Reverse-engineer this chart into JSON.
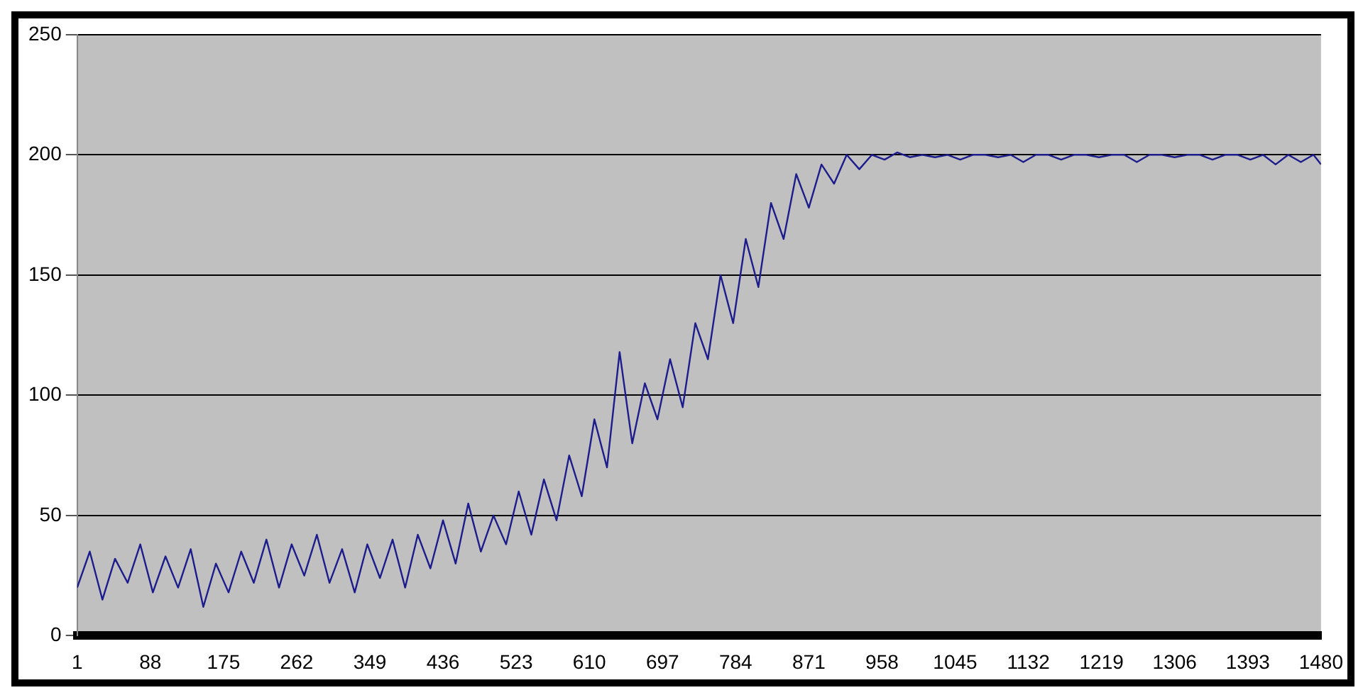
{
  "chart_data": {
    "type": "line",
    "grid": "y",
    "legend": false,
    "xlim": [
      1,
      1480
    ],
    "xticks": [
      1,
      88,
      175,
      262,
      349,
      436,
      523,
      610,
      697,
      784,
      871,
      958,
      1045,
      1132,
      1219,
      1306,
      1393,
      1480
    ],
    "ylim": [
      0,
      250
    ],
    "yticks": [
      0,
      50,
      100,
      150,
      200,
      250
    ],
    "series": [
      {
        "color": "#1c1c8c",
        "x": [
          1,
          16,
          31,
          46,
          61,
          76,
          91,
          106,
          121,
          136,
          151,
          166,
          181,
          196,
          211,
          226,
          241,
          256,
          271,
          286,
          301,
          316,
          331,
          346,
          361,
          376,
          391,
          406,
          421,
          436,
          451,
          466,
          481,
          496,
          511,
          526,
          541,
          556,
          571,
          586,
          601,
          616,
          631,
          646,
          661,
          676,
          691,
          706,
          721,
          736,
          751,
          766,
          781,
          796,
          811,
          826,
          841,
          856,
          871,
          886,
          901,
          916,
          931,
          946,
          961,
          976,
          991,
          1006,
          1021,
          1036,
          1051,
          1066,
          1081,
          1096,
          1111,
          1126,
          1141,
          1156,
          1171,
          1186,
          1201,
          1216,
          1231,
          1246,
          1261,
          1276,
          1291,
          1306,
          1321,
          1336,
          1351,
          1366,
          1381,
          1396,
          1411,
          1426,
          1441,
          1456,
          1471,
          1480
        ],
        "values": [
          20,
          35,
          15,
          32,
          22,
          38,
          18,
          33,
          20,
          36,
          12,
          30,
          18,
          35,
          22,
          40,
          20,
          38,
          25,
          42,
          22,
          36,
          18,
          38,
          24,
          40,
          20,
          42,
          28,
          48,
          30,
          55,
          35,
          50,
          38,
          60,
          42,
          65,
          48,
          75,
          58,
          90,
          70,
          118,
          80,
          105,
          90,
          115,
          95,
          130,
          115,
          150,
          130,
          165,
          145,
          180,
          165,
          192,
          178,
          196,
          188,
          200,
          194,
          200,
          198,
          201,
          199,
          200,
          199,
          200,
          198,
          200,
          200,
          199,
          200,
          197,
          200,
          200,
          198,
          200,
          200,
          199,
          200,
          200,
          197,
          200,
          200,
          199,
          200,
          200,
          198,
          200,
          200,
          198,
          200,
          196,
          200,
          197,
          200,
          196
        ]
      }
    ]
  }
}
